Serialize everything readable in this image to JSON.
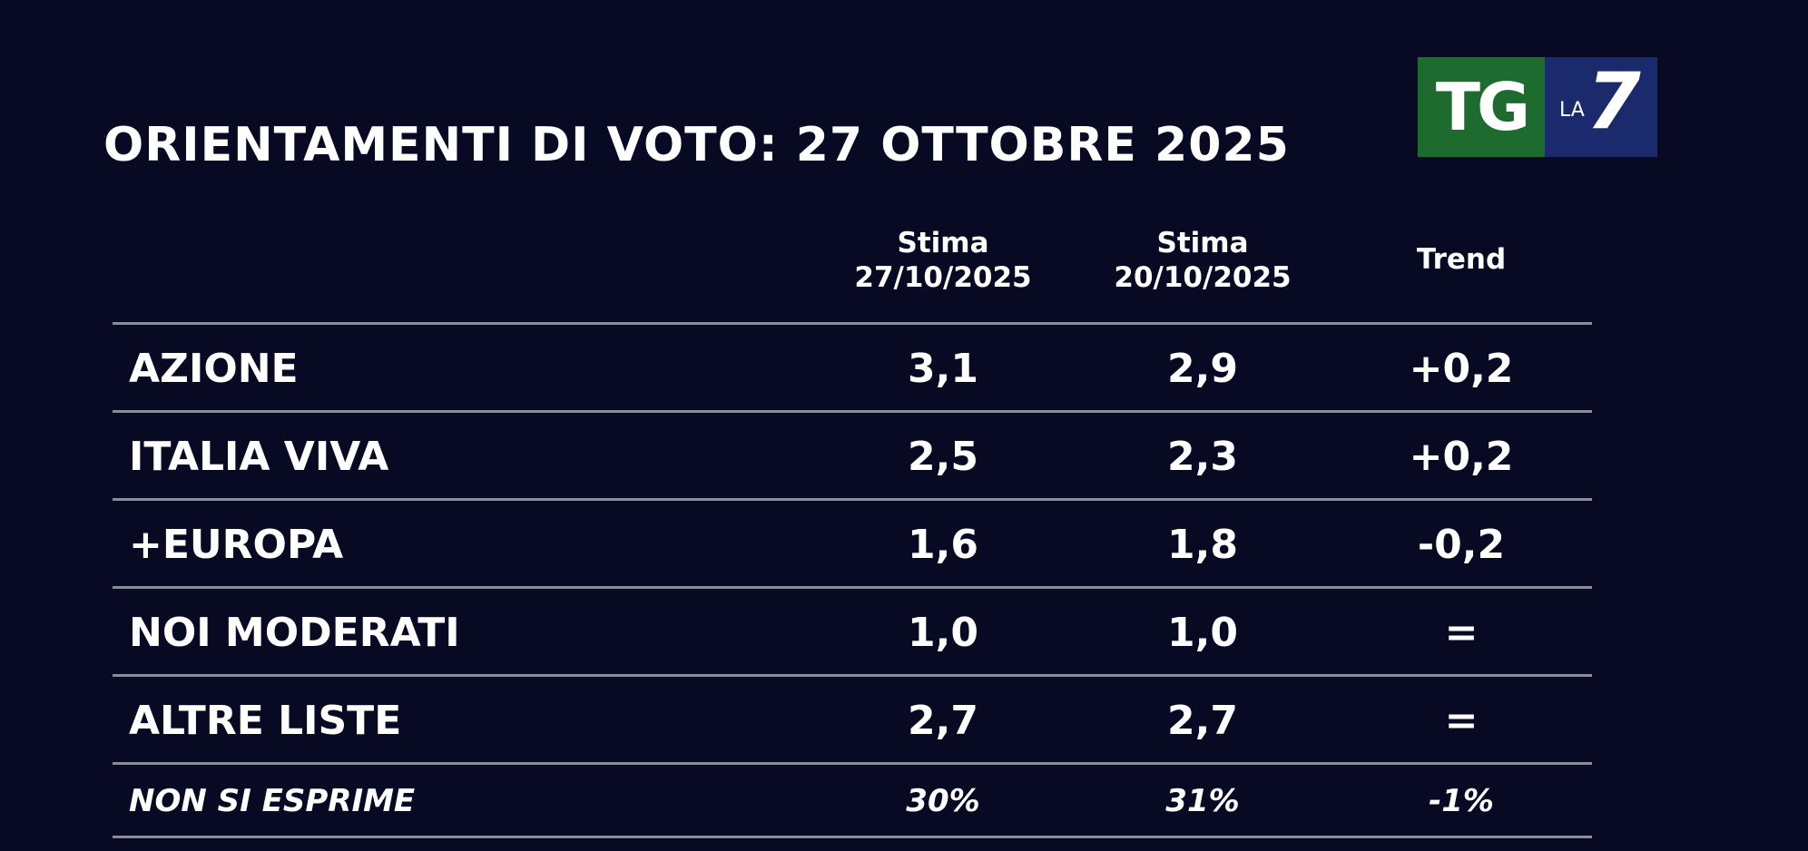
{
  "title": "ORIENTAMENTI DI VOTO: 27 OTTOBRE 2025",
  "logo": {
    "tg": "TG",
    "la": "LA",
    "seven": "7",
    "colors": {
      "tg_bg": "#1e6b2f",
      "la7_bg": "#1a2a6c"
    }
  },
  "columns": [
    {
      "line1": "Stima",
      "line2": "27/10/2025"
    },
    {
      "line1": "Stima",
      "line2": "20/10/2025"
    },
    {
      "label": "Trend"
    }
  ],
  "rows": [
    {
      "party": "AZIONE",
      "current": "3,1",
      "previous": "2,9",
      "trend": "+0,2"
    },
    {
      "party": "ITALIA VIVA",
      "current": "2,5",
      "previous": "2,3",
      "trend": "+0,2"
    },
    {
      "party": "+EUROPA",
      "current": "1,6",
      "previous": "1,8",
      "trend": "-0,2"
    },
    {
      "party": "NOI MODERATI",
      "current": "1,0",
      "previous": "1,0",
      "trend": "="
    },
    {
      "party": "ALTRE LISTE",
      "current": "2,7",
      "previous": "2,7",
      "trend": "="
    },
    {
      "party": "NON SI ESPRIME",
      "current": "30%",
      "previous": "31%",
      "trend": "-1%"
    }
  ],
  "colors": {
    "background": "#080a24",
    "text": "#ffffff",
    "rule": "#8a8c98"
  }
}
